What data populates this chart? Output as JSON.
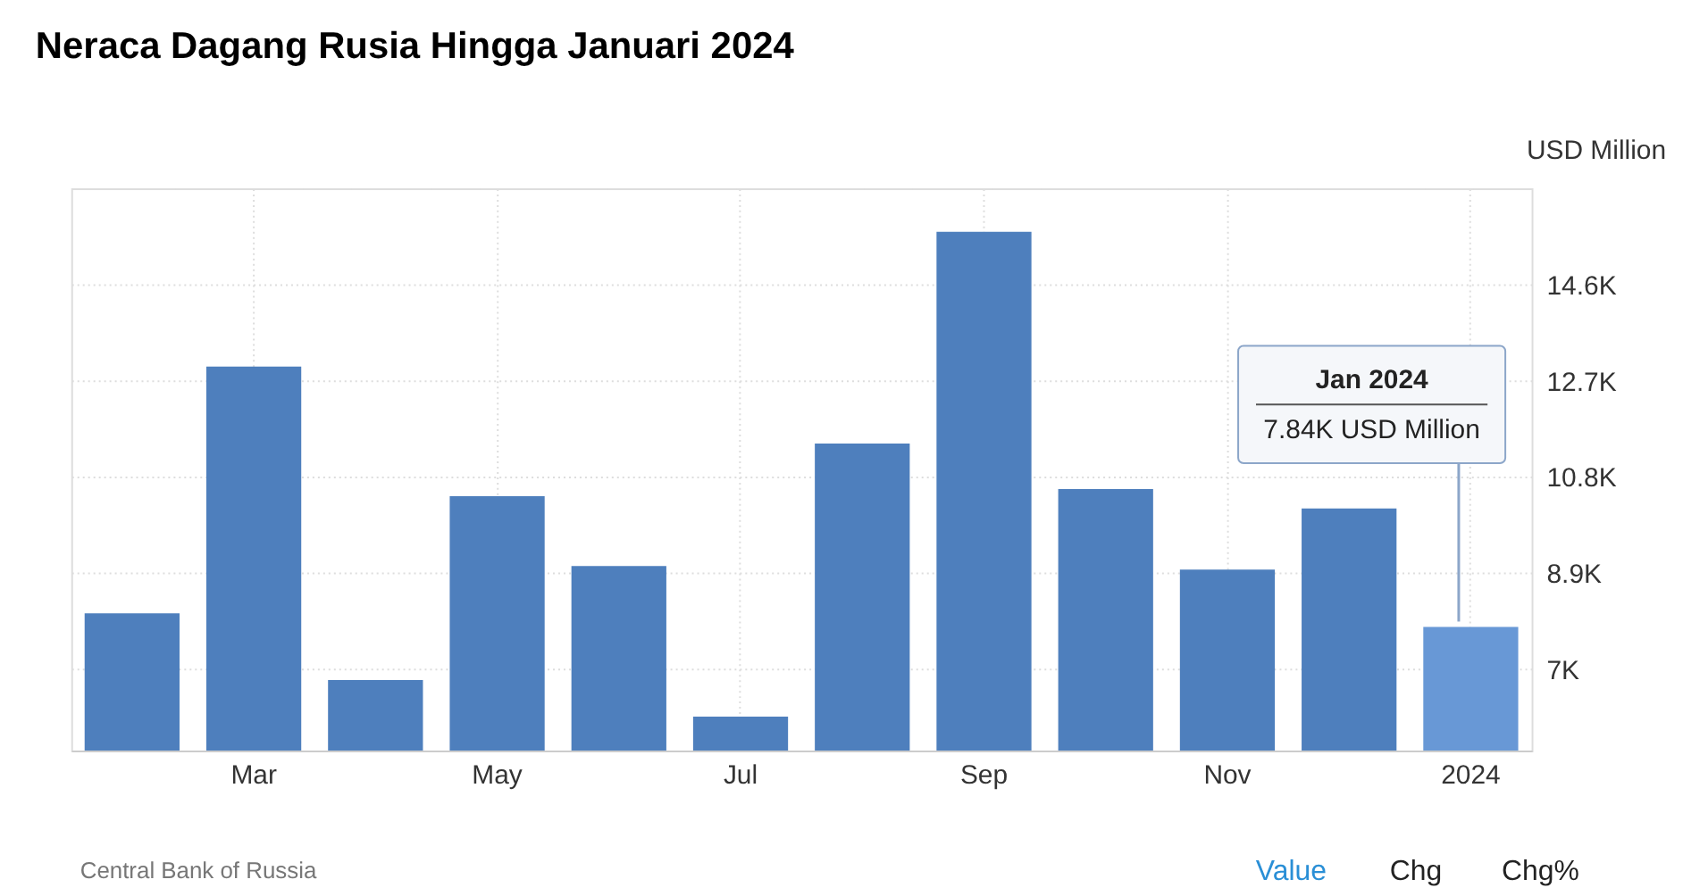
{
  "chart_data": {
    "type": "bar",
    "title": "Neraca Dagang Rusia Hingga Januari 2024",
    "ylabel": "USD Million",
    "categories": [
      null,
      "Mar",
      null,
      "May",
      null,
      "Jul",
      null,
      "Sep",
      null,
      "Nov",
      null,
      "2024"
    ],
    "values": [
      8110,
      12980,
      6790,
      10420,
      9040,
      6070,
      11460,
      15640,
      10560,
      8970,
      10180,
      7840
    ],
    "colors": [
      "#4e7fbd",
      "#4e7fbd",
      "#4e7fbd",
      "#4e7fbd",
      "#4e7fbd",
      "#4e7fbd",
      "#4e7fbd",
      "#4e7fbd",
      "#4e7fbd",
      "#4e7fbd",
      "#4e7fbd",
      "#6898d6"
    ],
    "ylim": [
      5400,
      16500
    ],
    "yticks": [
      {
        "value": 7000,
        "label": "7K"
      },
      {
        "value": 8900,
        "label": "8.9K"
      },
      {
        "value": 10800,
        "label": "10.8K"
      },
      {
        "value": 12700,
        "label": "12.7K"
      },
      {
        "value": 14600,
        "label": "14.6K"
      },
      {
        "value": 16500,
        "label": null
      }
    ],
    "grid": true,
    "annotations": [
      {
        "text": "Jan 2024\n7.84K USD Million",
        "x": "2024",
        "y": 7840
      },
      "Central Bank of Russia",
      "Value",
      "Chg",
      "Chg%"
    ]
  }
}
